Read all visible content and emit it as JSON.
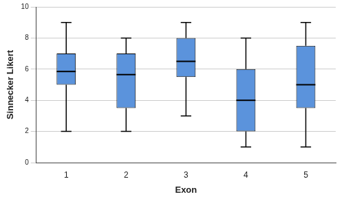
{
  "chart_data": {
    "type": "box",
    "x_label": "Exon",
    "y_label": "Sinnecker Likert",
    "categories": [
      "1",
      "2",
      "3",
      "4",
      "5"
    ],
    "min": [
      2,
      2,
      3,
      1,
      1
    ],
    "q1": [
      5,
      3.5,
      5.5,
      2,
      3.5
    ],
    "median": [
      5.85,
      5.65,
      6.5,
      4,
      5
    ],
    "q3": [
      7,
      7,
      8,
      6,
      7.5
    ],
    "max": [
      9,
      8,
      9,
      8,
      9
    ],
    "color": "#5b93dc",
    "ylim": [
      0,
      10
    ],
    "yticks": [
      0,
      2,
      4,
      6,
      8,
      10
    ],
    "grid": true
  }
}
